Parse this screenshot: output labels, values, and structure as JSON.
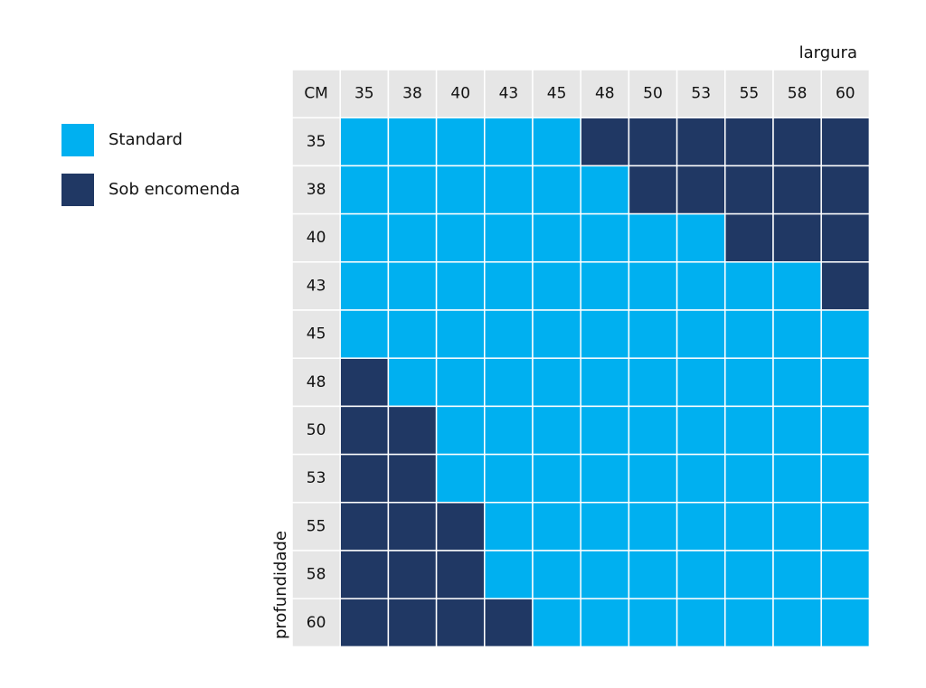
{
  "legend": {
    "items": [
      {
        "label": "Standard",
        "color": "#00b0f0",
        "key": "S"
      },
      {
        "label": "Sob encomenda",
        "color": "#203864",
        "key": "E"
      }
    ]
  },
  "chart_data": {
    "type": "heatmap",
    "title": "",
    "corner_label": "CM",
    "xlabel": "largura",
    "ylabel": "profundidade",
    "header_color": "#e6e6e6",
    "grid": true,
    "legend_position": "left",
    "x": [
      "35",
      "38",
      "40",
      "43",
      "45",
      "48",
      "50",
      "53",
      "55",
      "58",
      "60"
    ],
    "y": [
      "35",
      "38",
      "40",
      "43",
      "45",
      "48",
      "50",
      "53",
      "55",
      "58",
      "60"
    ],
    "values": [
      [
        "S",
        "S",
        "S",
        "S",
        "S",
        "E",
        "E",
        "E",
        "E",
        "E",
        "E"
      ],
      [
        "S",
        "S",
        "S",
        "S",
        "S",
        "S",
        "E",
        "E",
        "E",
        "E",
        "E"
      ],
      [
        "S",
        "S",
        "S",
        "S",
        "S",
        "S",
        "S",
        "S",
        "E",
        "E",
        "E"
      ],
      [
        "S",
        "S",
        "S",
        "S",
        "S",
        "S",
        "S",
        "S",
        "S",
        "S",
        "E"
      ],
      [
        "S",
        "S",
        "S",
        "S",
        "S",
        "S",
        "S",
        "S",
        "S",
        "S",
        "S"
      ],
      [
        "E",
        "S",
        "S",
        "S",
        "S",
        "S",
        "S",
        "S",
        "S",
        "S",
        "S"
      ],
      [
        "E",
        "E",
        "S",
        "S",
        "S",
        "S",
        "S",
        "S",
        "S",
        "S",
        "S"
      ],
      [
        "E",
        "E",
        "S",
        "S",
        "S",
        "S",
        "S",
        "S",
        "S",
        "S",
        "S"
      ],
      [
        "E",
        "E",
        "E",
        "S",
        "S",
        "S",
        "S",
        "S",
        "S",
        "S",
        "S"
      ],
      [
        "E",
        "E",
        "E",
        "S",
        "S",
        "S",
        "S",
        "S",
        "S",
        "S",
        "S"
      ],
      [
        "E",
        "E",
        "E",
        "E",
        "S",
        "S",
        "S",
        "S",
        "S",
        "S",
        "S"
      ]
    ]
  }
}
